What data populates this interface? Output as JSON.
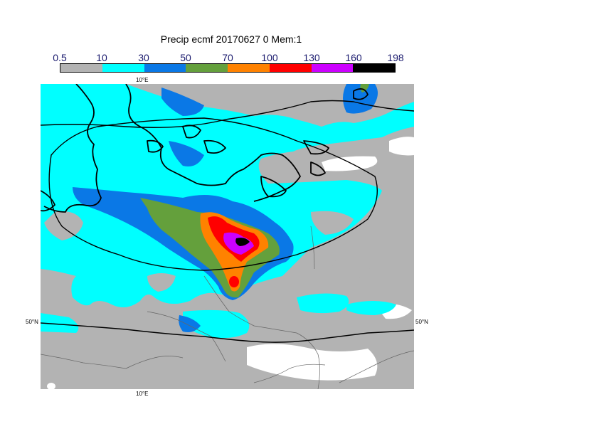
{
  "title": "Precip ecmf 20170627 0 Mem:1",
  "legend": {
    "levels": [
      "0.5",
      "10",
      "30",
      "50",
      "70",
      "100",
      "130",
      "160",
      "198"
    ],
    "colors": [
      "#b3b3b3",
      "#00ffff",
      "#0a78e6",
      "#64a03c",
      "#ff8200",
      "#ff0000",
      "#cc00ff",
      "#000000"
    ]
  },
  "axes": {
    "lon_top": "10°E",
    "lon_bottom": "10°E",
    "lat_left": "50°N",
    "lat_right": "50°N"
  },
  "map_colors": {
    "land_no_precip": "#ffffff",
    "coastline": "#000000",
    "borders": "#555555"
  }
}
